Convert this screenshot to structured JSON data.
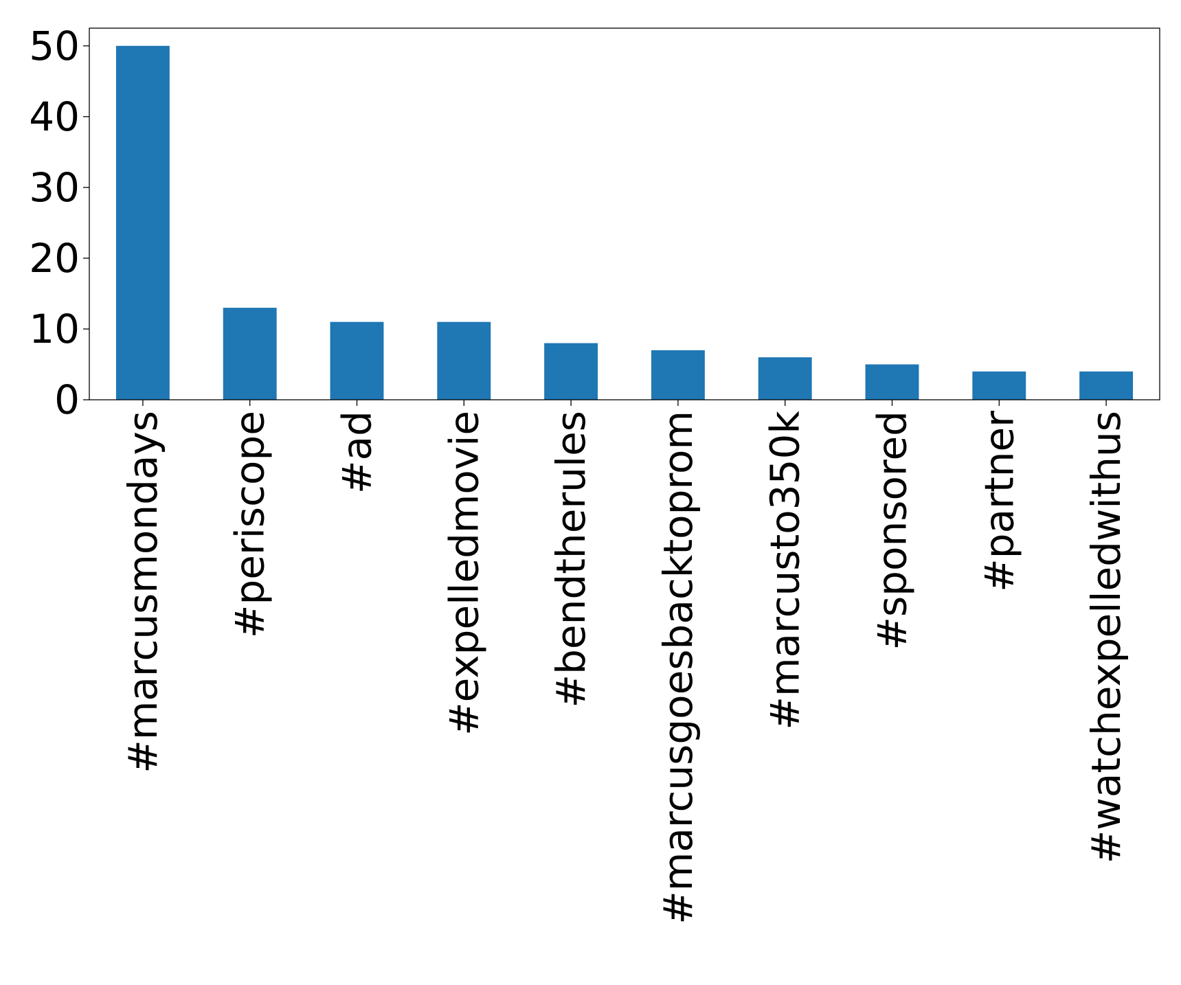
{
  "chart_data": {
    "type": "bar",
    "title": "",
    "xlabel": "",
    "ylabel": "",
    "categories": [
      "#marcusmondays",
      "#periscope",
      "#ad",
      "#expelledmovie",
      "#bendtherules",
      "#marcusgoesbacktoprom",
      "#marcusto350k",
      "#sponsored",
      "#partner",
      "#watchexpelledwithus"
    ],
    "values": [
      50,
      13,
      11,
      11,
      8,
      7,
      6,
      5,
      4,
      4
    ],
    "ylim": [
      0,
      52.5
    ],
    "yticks": [
      0,
      10,
      20,
      30,
      40,
      50
    ],
    "ytick_labels": [
      "0",
      "10",
      "20",
      "30",
      "40",
      "50"
    ],
    "grid": false,
    "legend": "none",
    "bar_color": "#1f77b4"
  }
}
